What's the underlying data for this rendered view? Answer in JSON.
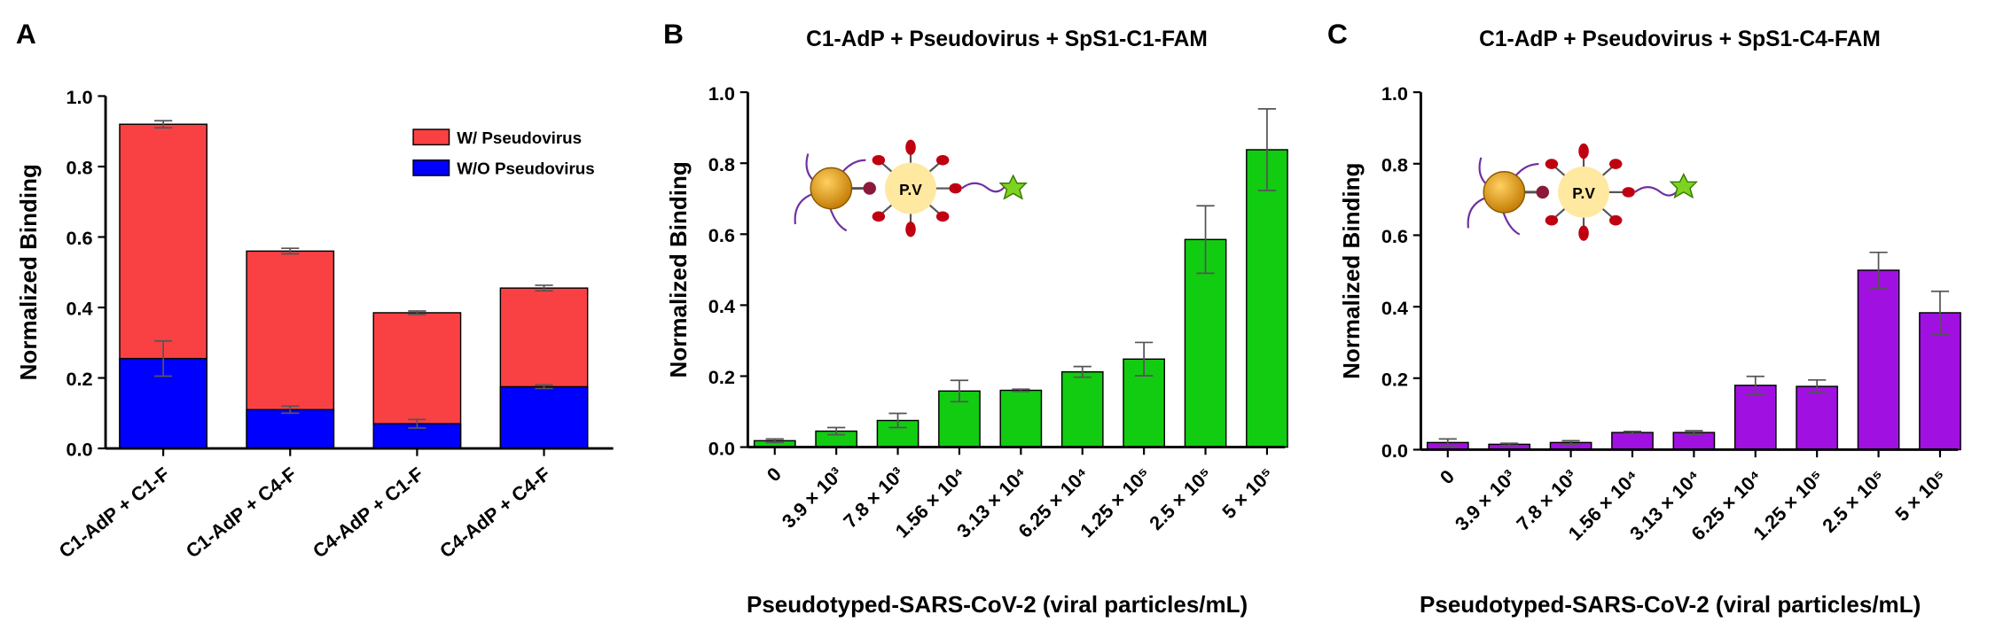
{
  "chart_data": [
    {
      "type": "bar",
      "panel": "A",
      "ylabel": "Normalized Binding",
      "categories": [
        "C1-AdP + C1-F",
        "C1-AdP + C4-F",
        "C4-AdP + C1-F",
        "C4-AdP + C4-F"
      ],
      "series": [
        {
          "name": "W/ Pseudovirus",
          "color": "#f94144",
          "values": [
            0.92,
            0.56,
            0.385,
            0.455
          ],
          "errors": [
            0.01,
            0.008,
            0.005,
            0.008
          ]
        },
        {
          "name": "W/O Pseudovirus",
          "color": "#0000ff",
          "values": [
            0.255,
            0.11,
            0.07,
            0.175
          ],
          "errors": [
            0.05,
            0.01,
            0.012,
            0.005
          ]
        }
      ],
      "legend": "upper right",
      "ylim": [
        0,
        1
      ],
      "yticks": [
        {
          "value": 0,
          "label": "0.0"
        },
        {
          "value": 0.2,
          "label": "0.2"
        },
        {
          "value": 0.4,
          "label": "0.4"
        },
        {
          "value": 0.6,
          "label": "0.6"
        },
        {
          "value": 0.8,
          "label": "0.8"
        },
        {
          "value": 1,
          "label": "1.0"
        }
      ]
    },
    {
      "type": "bar",
      "panel": "B",
      "title": "C1-AdP + Pseudovirus + SpS1-C1-FAM",
      "xlabel": "Pseudotyped-SARS-CoV-2 (viral particles/mL)",
      "ylabel": "Normalized Binding",
      "categories": [
        "0",
        "3.9 × 10³",
        "7.8 × 10³",
        "1.56 × 10⁴",
        "3.13 × 10⁴",
        "6.25 × 10⁴",
        "1.25 × 10⁵",
        "2.5 × 10⁵",
        "5 × 10⁵"
      ],
      "values": [
        0.018,
        0.045,
        0.075,
        0.158,
        0.16,
        0.212,
        0.248,
        0.585,
        0.838
      ],
      "errors": [
        0.005,
        0.01,
        0.02,
        0.03,
        0.003,
        0.015,
        0.047,
        0.095,
        0.115
      ],
      "color": "#11cc11",
      "inset_label": "P.V",
      "ylim": [
        0,
        1
      ],
      "yticks": [
        {
          "value": 0,
          "label": "0.0"
        },
        {
          "value": 0.2,
          "label": "0.2"
        },
        {
          "value": 0.4,
          "label": "0.4"
        },
        {
          "value": 0.6,
          "label": "0.6"
        },
        {
          "value": 0.8,
          "label": "0.8"
        },
        {
          "value": 1,
          "label": "1.0"
        }
      ]
    },
    {
      "type": "bar",
      "panel": "C",
      "title": "C1-AdP + Pseudovirus + SpS1-C4-FAM",
      "xlabel": "Pseudotyped-SARS-CoV-2 (viral particles/mL)",
      "ylabel": "Normalized Binding",
      "categories": [
        "0",
        "3.9 × 10³",
        "7.8 × 10³",
        "1.56 × 10⁴",
        "3.13 × 10⁴",
        "6.25 × 10⁴",
        "1.25 × 10⁵",
        "2.5 × 10⁵",
        "5 × 10⁵"
      ],
      "values": [
        0.02,
        0.015,
        0.02,
        0.048,
        0.048,
        0.18,
        0.177,
        0.502,
        0.383
      ],
      "errors": [
        0.01,
        0.003,
        0.005,
        0.003,
        0.005,
        0.025,
        0.018,
        0.05,
        0.06
      ],
      "color": "#a010e0",
      "inset_label": "P.V",
      "ylim": [
        0,
        1
      ],
      "yticks": [
        {
          "value": 0,
          "label": "0.0"
        },
        {
          "value": 0.2,
          "label": "0.2"
        },
        {
          "value": 0.4,
          "label": "0.4"
        },
        {
          "value": 0.6,
          "label": "0.6"
        },
        {
          "value": 0.8,
          "label": "0.8"
        },
        {
          "value": 1,
          "label": "1.0"
        }
      ]
    }
  ]
}
